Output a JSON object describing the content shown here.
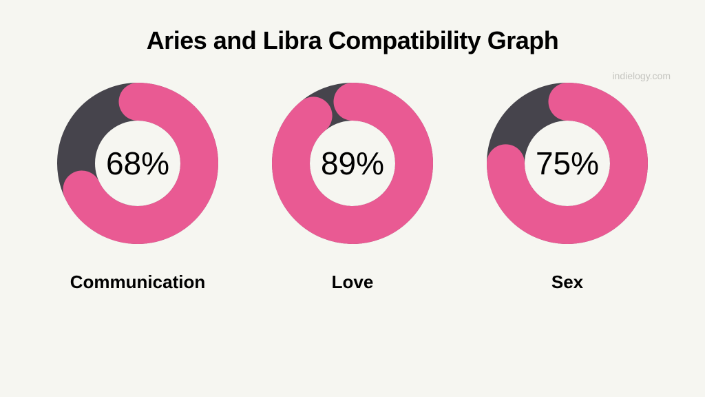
{
  "page": {
    "background_color": "#f6f6f1",
    "title": "Aries and Libra Compatibility Graph",
    "title_color": "#000000",
    "title_fontsize": 36,
    "title_fontweight": 800,
    "watermark": "indielogy.com",
    "watermark_color": "#c4c4bf"
  },
  "donut_style": {
    "outer_radius": 117,
    "inner_radius": 62,
    "stroke_width": 55,
    "stroke_linecap": "round",
    "fill_color": "#e95a93",
    "track_color": "#46444c",
    "center_text_color": "#000000",
    "center_text_fontsize": 46,
    "label_color": "#000000",
    "label_fontsize": 26,
    "label_fontweight": 700
  },
  "charts": [
    {
      "id": "communication",
      "label": "Communication",
      "value": 68,
      "display_value": "68%"
    },
    {
      "id": "love",
      "label": "Love",
      "value": 89,
      "display_value": "89%"
    },
    {
      "id": "sex",
      "label": "Sex",
      "value": 75,
      "display_value": "75%"
    }
  ]
}
